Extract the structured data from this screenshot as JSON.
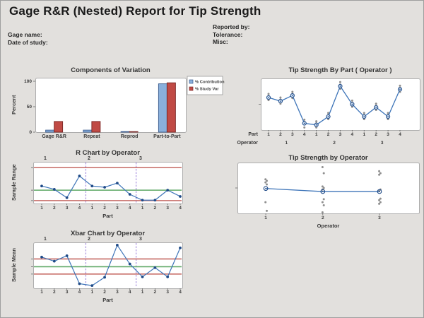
{
  "header": {
    "title": "Gage R&R (Nested) Report for Tip Strength",
    "left_fields": [
      {
        "label": "Gage name:"
      },
      {
        "label": "Date of study:"
      }
    ],
    "right_fields": [
      {
        "label": "Reported by:"
      },
      {
        "label": "Tolerance:"
      },
      {
        "label": "Misc:"
      }
    ]
  },
  "colors": {
    "background": "#e2e0dd",
    "plot_bg": "#ffffff",
    "plot_border": "#adadad",
    "contribution_blue": "#8ab0dc",
    "study_var_red": "#c04a45",
    "line_blue": "#3d74b8",
    "point_navy": "#1f4a87",
    "marker_fill": "#c7d9ee",
    "gray_dot": "#8f8f8f",
    "limit_red": "#c66a64",
    "center_green": "#5fa967",
    "separator_purple": "#b7a2e3",
    "tick_color": "#666666",
    "text_dark": "#3a3a3a"
  },
  "chart_data": [
    {
      "id": "cov",
      "type": "bar",
      "title": "Components of Variation",
      "ylabel": "Percent",
      "ylim": [
        0,
        100
      ],
      "yticks": [
        0,
        50,
        100
      ],
      "grid": false,
      "legend_position": "right",
      "categories": [
        "Gage R&R",
        "Repeat",
        "Reprod",
        "Part-to-Part"
      ],
      "series": [
        {
          "name": "% Contribution",
          "color": "#8ab0dc",
          "edge": "#38598c",
          "values": [
            4,
            4,
            0.4,
            95
          ]
        },
        {
          "name": "% Study Var",
          "color": "#c04a45",
          "edge": "#7a2725",
          "values": [
            21,
            21,
            0.6,
            97
          ]
        }
      ]
    },
    {
      "id": "by_part",
      "type": "line",
      "title": "Tip Strength By Part ( Operator )",
      "value_scale": "normalized 0-1 of plot height (y axis unlabeled)",
      "x_axis_rows": [
        {
          "label": "Part",
          "ticks": [
            "1",
            "2",
            "3",
            "4",
            "1",
            "2",
            "3",
            "4",
            "1",
            "2",
            "3",
            "4"
          ]
        },
        {
          "label": "Operator",
          "ticks": [
            "1",
            "2",
            "3"
          ]
        }
      ],
      "means": [
        0.63,
        0.56,
        0.67,
        0.13,
        0.1,
        0.26,
        0.85,
        0.5,
        0.26,
        0.44,
        0.26,
        0.79
      ],
      "points": [
        [
          0.7,
          0.66,
          0.58
        ],
        [
          0.63,
          0.59,
          0.51
        ],
        [
          0.74,
          0.7,
          0.62
        ],
        [
          0.2,
          0.16,
          0.05
        ],
        [
          0.17,
          0.13,
          0.05
        ],
        [
          0.33,
          0.29,
          0.21
        ],
        [
          0.93,
          0.88,
          0.8
        ],
        [
          0.57,
          0.53,
          0.45
        ],
        [
          0.33,
          0.29,
          0.21
        ],
        [
          0.51,
          0.47,
          0.39
        ],
        [
          0.33,
          0.29,
          0.21
        ],
        [
          0.86,
          0.82,
          0.74
        ]
      ]
    },
    {
      "id": "r_chart",
      "type": "control",
      "title": "R Chart by Operator",
      "ylabel": "Sample Range",
      "xlabel": "Part",
      "value_scale": "normalized 0-1 of plot height (y axis unlabeled)",
      "panel_labels": [
        "1",
        "2",
        "3"
      ],
      "x_ticks": [
        "1",
        "2",
        "3",
        "4",
        "1",
        "2",
        "3",
        "4",
        "1",
        "2",
        "3",
        "4"
      ],
      "values": [
        0.42,
        0.34,
        0.14,
        0.66,
        0.42,
        0.39,
        0.49,
        0.22,
        0.08,
        0.08,
        0.32,
        0.17
      ],
      "ucl": 0.86,
      "center": 0.32,
      "lcl": 0.07
    },
    {
      "id": "by_operator",
      "type": "scatter",
      "title": "Tip Strength by Operator",
      "xlabel": "Operator",
      "value_scale": "normalized 0-1 of plot height (y axis unlabeled)",
      "x_ticks": [
        "1",
        "2",
        "3"
      ],
      "means": [
        0.49,
        0.43,
        0.43
      ],
      "points": [
        [
          0.67,
          0.64,
          0.61,
          0.57,
          0.22,
          0.05
        ],
        [
          0.91,
          0.79,
          0.53,
          0.5,
          0.47,
          0.28,
          0.22,
          0.16,
          0.02
        ],
        [
          0.83,
          0.79,
          0.76,
          0.47,
          0.44,
          0.29,
          0.26,
          0.22,
          0.19
        ]
      ]
    },
    {
      "id": "xbar_chart",
      "type": "control",
      "title": "Xbar Chart by Operator",
      "ylabel": "Sample Mean",
      "xlabel": "Part",
      "value_scale": "normalized 0-1 of plot height (y axis unlabeled)",
      "panel_labels": [
        "1",
        "2",
        "3"
      ],
      "x_ticks": [
        "1",
        "2",
        "3",
        "4",
        "1",
        "2",
        "3",
        "4",
        "1",
        "2",
        "3",
        "4"
      ],
      "values": [
        0.68,
        0.59,
        0.71,
        0.1,
        0.06,
        0.24,
        0.94,
        0.53,
        0.25,
        0.45,
        0.25,
        0.88
      ],
      "ucl": 0.64,
      "center": 0.47,
      "lcl": 0.31
    }
  ]
}
